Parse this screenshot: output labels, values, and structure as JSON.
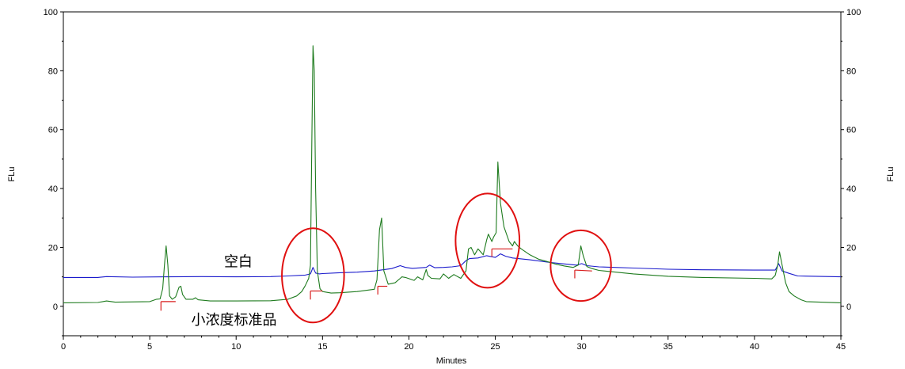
{
  "chart_data": {
    "type": "line",
    "xlabel": "Minutes",
    "ylabel_left": "FLu",
    "ylabel_right": "FLu",
    "xlim": [
      0,
      45
    ],
    "ylim": [
      -10,
      100
    ],
    "x_ticks": [
      0,
      5,
      10,
      15,
      20,
      25,
      30,
      35,
      40,
      45
    ],
    "y_ticks": [
      0,
      20,
      40,
      60,
      80,
      100
    ],
    "grid": false,
    "colors": {
      "blank": "#1a1acc",
      "standard": "#1e7b1e",
      "marker": "#d81e1e",
      "circle": "#e01010"
    },
    "annotations": [
      {
        "id": "blank-label",
        "text": "空白",
        "x": 9.3,
        "y": 13.5
      },
      {
        "id": "standard-label",
        "text": "小浓度标准品",
        "x": 7.4,
        "y": -6.2
      }
    ],
    "circles": [
      {
        "cx": 14.45,
        "cy": 10.5,
        "rx": 1.8,
        "ry": 16
      },
      {
        "cx": 24.55,
        "cy": 22.3,
        "rx": 1.85,
        "ry": 16
      },
      {
        "cx": 29.95,
        "cy": 13.8,
        "rx": 1.75,
        "ry": 12
      }
    ],
    "series": [
      {
        "id": "blank",
        "color": "#1a1acc",
        "x": [
          0,
          2,
          2.5,
          4,
          6,
          8,
          10,
          12,
          13,
          14,
          14.3,
          14.45,
          14.6,
          14.8,
          15,
          16,
          17,
          18,
          19,
          19.5,
          19.8,
          20.2,
          21,
          21.2,
          21.5,
          22,
          22.5,
          23,
          23.3,
          23.5,
          24,
          24.5,
          25,
          25.3,
          25.6,
          26,
          27,
          28,
          29,
          29.7,
          30,
          30.3,
          31,
          33,
          35,
          37,
          40,
          41.2,
          41.4,
          41.6,
          42,
          42.5,
          45
        ],
        "y": [
          9.8,
          9.8,
          10.1,
          9.9,
          10.0,
          10.1,
          10.0,
          10.1,
          10.3,
          10.6,
          11.0,
          13.2,
          11.3,
          11.0,
          11.1,
          11.4,
          11.6,
          12.0,
          12.8,
          13.8,
          13.2,
          12.9,
          13.2,
          14.0,
          13.1,
          13.2,
          13.4,
          13.8,
          15.5,
          16.2,
          16.4,
          17.2,
          16.6,
          17.8,
          17.0,
          16.4,
          15.8,
          15.0,
          14.4,
          14.0,
          14.5,
          13.8,
          13.4,
          13.0,
          12.6,
          12.4,
          12.3,
          12.3,
          14.5,
          12.0,
          11.2,
          10.3,
          10.0
        ]
      },
      {
        "id": "standard",
        "color": "#1e7b1e",
        "x": [
          0,
          2,
          2.5,
          3,
          5,
          5.4,
          5.6,
          5.75,
          5.85,
          5.95,
          6.05,
          6.15,
          6.3,
          6.5,
          6.7,
          6.8,
          6.9,
          7.1,
          7.5,
          7.65,
          7.8,
          8.5,
          10,
          12,
          13,
          13.5,
          13.8,
          14.0,
          14.2,
          14.3,
          14.38,
          14.45,
          14.52,
          14.6,
          14.7,
          14.85,
          15.0,
          15.5,
          16,
          17,
          18,
          18.15,
          18.3,
          18.42,
          18.55,
          18.8,
          19.2,
          19.5,
          19.6,
          19.8,
          20.3,
          20.5,
          20.8,
          21.0,
          21.1,
          21.3,
          21.8,
          22.0,
          22.3,
          22.6,
          23.0,
          23.3,
          23.45,
          23.6,
          23.8,
          24.0,
          24.3,
          24.5,
          24.6,
          24.8,
          24.9,
          25.05,
          25.15,
          25.3,
          25.5,
          25.8,
          26.0,
          26.1,
          26.3,
          26.5,
          27,
          27.5,
          28,
          28.5,
          29,
          29.5,
          29.8,
          29.95,
          30.1,
          30.3,
          30.6,
          31,
          33,
          35,
          37,
          40,
          41.0,
          41.2,
          41.35,
          41.45,
          41.6,
          41.8,
          42.0,
          42.3,
          42.7,
          43.0,
          45
        ],
        "y": [
          1.2,
          1.3,
          1.8,
          1.4,
          1.6,
          2.4,
          2.5,
          6.0,
          14.0,
          20.5,
          14.0,
          3.5,
          2.4,
          3.2,
          6.5,
          6.8,
          4.0,
          2.4,
          2.4,
          2.9,
          2.2,
          1.8,
          1.8,
          1.9,
          2.4,
          3.5,
          5.0,
          7.0,
          9.5,
          14.0,
          55.0,
          88.5,
          80.0,
          40.0,
          12.0,
          6.0,
          5.0,
          4.5,
          4.6,
          5.0,
          5.8,
          9.0,
          26.0,
          30.0,
          12.0,
          7.5,
          8.0,
          9.5,
          10.0,
          9.8,
          8.8,
          10.0,
          9.0,
          12.5,
          10.5,
          9.5,
          9.3,
          11.0,
          9.5,
          10.8,
          9.5,
          12.0,
          19.5,
          20.0,
          17.5,
          19.5,
          17.5,
          22.5,
          24.5,
          22.0,
          23.5,
          25.0,
          49.0,
          35.0,
          27.0,
          22.0,
          20.5,
          22.0,
          20.5,
          19.5,
          17.5,
          16.0,
          15.2,
          14.3,
          13.7,
          13.2,
          14.0,
          20.5,
          17.0,
          13.5,
          12.8,
          12.2,
          11.0,
          10.2,
          9.8,
          9.5,
          9.3,
          10.5,
          14.0,
          18.5,
          14.0,
          8.0,
          5.0,
          3.5,
          2.2,
          1.6,
          1.2
        ]
      }
    ],
    "markers": [
      {
        "series": "standard",
        "x_start": 5.65,
        "x_end": 6.5,
        "y_start": 1.6,
        "y_end": 1.6,
        "tick_x": 5.65,
        "tick_y0": 1.6,
        "tick_y1": -1.5
      },
      {
        "series": "standard",
        "x_start": 14.3,
        "x_end": 15.0,
        "y_start": 5.2,
        "y_end": 5.2,
        "tick_x": 14.3,
        "tick_y0": 5.2,
        "tick_y1": 2.3
      },
      {
        "series": "standard",
        "x_start": 18.2,
        "x_end": 18.75,
        "y_start": 6.8,
        "y_end": 6.8,
        "tick_x": 18.2,
        "tick_y0": 6.8,
        "tick_y1": 4.0
      },
      {
        "series": "standard",
        "x_start": 24.8,
        "x_end": 26.0,
        "y_start": 19.5,
        "y_end": 19.5,
        "tick_x": 24.8,
        "tick_y0": 19.5,
        "tick_y1": 16.8
      },
      {
        "series": "standard",
        "x_start": 29.6,
        "x_end": 30.6,
        "y_start": 12.3,
        "y_end": 12.0,
        "tick_x": 29.6,
        "tick_y0": 12.3,
        "tick_y1": 9.5
      }
    ]
  }
}
